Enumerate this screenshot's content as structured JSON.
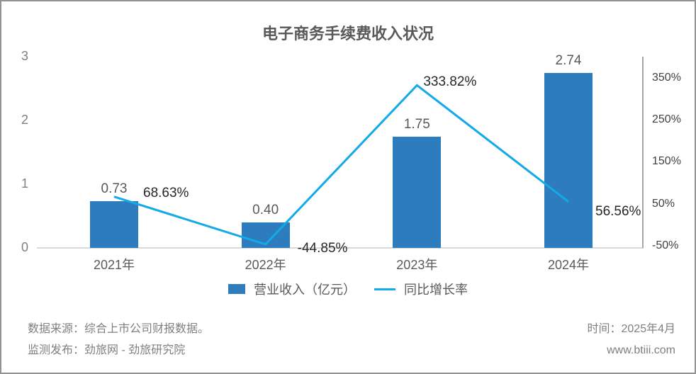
{
  "title": "电子商务手续费收入状况",
  "chart_data": {
    "type": "bar",
    "title": "电子商务手续费收入状况",
    "categories": [
      "2021年",
      "2022年",
      "2023年",
      "2024年"
    ],
    "series": [
      {
        "name": "营业收入（亿元）",
        "type": "bar",
        "axis": "left",
        "color": "#2d7dbe",
        "values": [
          0.73,
          0.4,
          1.75,
          2.74
        ],
        "labels": [
          "0.73",
          "0.40",
          "1.75",
          "2.74"
        ]
      },
      {
        "name": "同比增长率",
        "type": "line",
        "axis": "right",
        "color": "#14a9e9",
        "values": [
          68.63,
          -44.85,
          333.82,
          56.56
        ],
        "labels": [
          "68.63%",
          "-44.85%",
          "333.82%",
          "56.56%"
        ]
      }
    ],
    "left_axis": {
      "range": [
        0,
        3
      ],
      "ticks": [
        {
          "label": "3",
          "value": 3
        },
        {
          "label": "2",
          "value": 2
        },
        {
          "label": "1",
          "value": 1
        },
        {
          "label": "0",
          "value": 0
        }
      ]
    },
    "right_axis": {
      "range": [
        -50,
        350
      ],
      "ticks": [
        {
          "label": "350%",
          "value": 350
        },
        {
          "label": "250%",
          "value": 250
        },
        {
          "label": "150%",
          "value": 150
        },
        {
          "label": "50%",
          "value": 50
        },
        {
          "label": "-50%",
          "value": -50
        }
      ]
    },
    "grid": false,
    "legend_position": "bottom"
  },
  "legend": {
    "items": [
      {
        "label": "营业收入（亿元）",
        "swatch": "bar-swatch",
        "color": "#2d7dbe"
      },
      {
        "label": "同比增长率",
        "swatch": "line-swatch",
        "color": "#14a9e9"
      }
    ]
  },
  "footer": {
    "source_line": "数据来源：综合上市公司财报数据。",
    "publisher_line": "监测发布：劲旅网 - 劲旅研究院",
    "time_line": "时间：2025年4月",
    "website": "www.btiii.com"
  }
}
